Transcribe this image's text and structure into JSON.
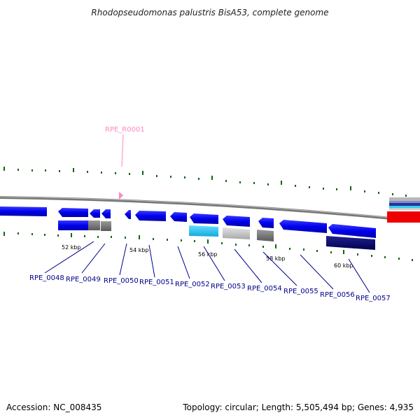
{
  "title": "Rhodopseudomonas palustris BisA53, complete genome",
  "accession": "Accession: NC_008435",
  "topology": "Topology: circular; Length: 5,505,494 bp; Genes: 4,935",
  "colors": {
    "cds": "#0000ee",
    "pseudo": "#707070",
    "rrna": "#ff88c0",
    "cyan": "#33ccee",
    "silver": "#c8c8c8",
    "navy": "#000070",
    "red": "#ee0000",
    "tick": "#116611",
    "backbone": "#888888"
  },
  "kbp_labels": [
    "52 kbp",
    "54 kbp",
    "56 kbp",
    "58 kbp",
    "60 kbp"
  ],
  "rna_label": "RPE_R0001",
  "gene_labels": [
    "RPE_0048",
    "RPE_0049",
    "RPE_0050",
    "RPE_0051",
    "RPE_0052",
    "RPE_0053",
    "RPE_0054",
    "RPE_0055",
    "RPE_0056",
    "RPE_0057"
  ]
}
